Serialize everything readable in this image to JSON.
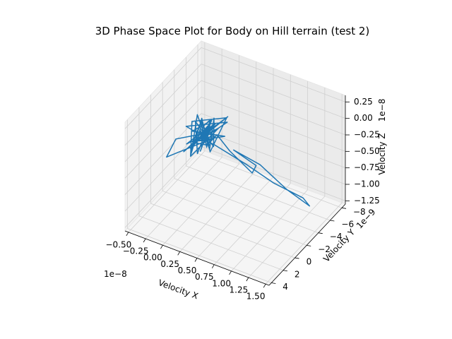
{
  "chart_data": {
    "type": "line",
    "projection": "3d",
    "title": "3D Phase Space Plot for Body on Hill terrain (test 2)",
    "xlabel": "Velocity X",
    "ylabel": "Velocity Y",
    "zlabel": "Velocity Z",
    "x_offset": "1e−8",
    "y_offset": "1e−9",
    "z_offset": "1e−8",
    "x_ticks": [
      "−0.50",
      "−0.25",
      "0.00",
      "0.25",
      "0.50",
      "0.75",
      "1.00",
      "1.25",
      "1.50"
    ],
    "y_ticks": [
      "−8",
      "−6",
      "−4",
      "−2",
      "0",
      "2",
      "4"
    ],
    "z_ticks": [
      "−1.25",
      "−1.00",
      "−0.75",
      "−0.50",
      "−0.25",
      "0.00",
      "0.25"
    ],
    "x_tick_values": [
      -0.5,
      -0.25,
      0.0,
      0.25,
      0.5,
      0.75,
      1.0,
      1.25,
      1.5
    ],
    "y_tick_values": [
      -8,
      -6,
      -4,
      -2,
      0,
      2,
      4
    ],
    "z_tick_values": [
      -1.25,
      -1.0,
      -0.75,
      -0.5,
      -0.25,
      0.0,
      0.25
    ],
    "xlim": [
      -0.55,
      1.55
    ],
    "ylim": [
      -8.6,
      4.4
    ],
    "zlim": [
      -1.3,
      0.35
    ],
    "grid": true,
    "series": [
      {
        "color": "#1f77b4",
        "x": [
          0.2,
          0.25,
          0.15,
          0.3,
          0.1,
          0.35,
          0.2,
          0.05,
          0.3,
          0.4,
          0.15,
          0.25,
          0.0,
          0.35,
          0.2,
          0.45,
          0.1,
          0.3,
          0.2,
          0.25,
          0.15,
          0.35,
          0.05,
          0.3,
          0.2,
          0.4,
          0.1,
          0.25,
          0.3,
          0.15,
          0.2,
          0.35,
          0.25,
          0.1,
          0.3,
          0.2,
          0.4,
          0.15,
          0.25,
          0.3,
          0.2,
          0.1,
          0.35,
          0.25,
          0.15,
          0.3,
          0.2,
          0.2,
          0.6,
          0.9,
          1.2,
          1.25,
          1.0,
          0.7,
          0.4,
          0.6,
          0.5,
          0.3,
          0.2,
          0.1,
          0.25,
          0.3,
          -0.15,
          -0.1,
          0.2,
          0.25,
          0.15,
          0.2,
          0.3,
          0.2,
          0.25,
          0.15,
          0.2
        ],
        "y": [
          -1,
          1,
          -2,
          0,
          1.5,
          -1,
          2,
          0,
          -3,
          1,
          -0.5,
          2.5,
          -1.5,
          0.5,
          -2,
          1,
          0,
          2,
          -1,
          1.5,
          -0.5,
          -2.5,
          1,
          0,
          2,
          -1.5,
          0.5,
          -1,
          1.5,
          -2,
          0,
          1,
          -0.5,
          2,
          -1,
          0.5,
          -2,
          1,
          -1.5,
          0,
          2,
          -1,
          0.5,
          1.5,
          -0.5,
          0,
          1,
          -2,
          -3,
          -4,
          -5.5,
          -6,
          -5,
          -4,
          -3,
          -4.5,
          -5,
          -3.5,
          -2.5,
          -2,
          -1,
          0,
          2,
          1,
          0,
          0.5,
          -0.5,
          1,
          -1,
          0,
          0.5,
          -0.3,
          0.2
        ],
        "z": [
          0.05,
          0.15,
          -0.05,
          0.2,
          0.0,
          0.1,
          -0.1,
          0.18,
          0.05,
          -0.05,
          0.22,
          0.0,
          0.12,
          -0.08,
          0.1,
          0.05,
          0.2,
          -0.02,
          0.08,
          0.15,
          -0.1,
          0.05,
          0.2,
          0.0,
          0.12,
          -0.05,
          0.1,
          0.18,
          -0.03,
          0.06,
          0.15,
          0.0,
          0.1,
          -0.07,
          0.14,
          0.04,
          0.2,
          -0.04,
          0.09,
          0.16,
          0.02,
          0.11,
          -0.02,
          0.07,
          0.17,
          0.0,
          0.1,
          -0.3,
          -0.55,
          -0.8,
          -1.05,
          -1.2,
          -0.95,
          -0.6,
          -0.4,
          -0.7,
          -0.9,
          -0.5,
          -0.2,
          -0.35,
          -0.1,
          0.0,
          -0.25,
          -0.05,
          0.05,
          0.1,
          0.0,
          0.08,
          -0.05,
          0.1,
          0.02,
          0.05,
          0.03
        ]
      }
    ]
  }
}
